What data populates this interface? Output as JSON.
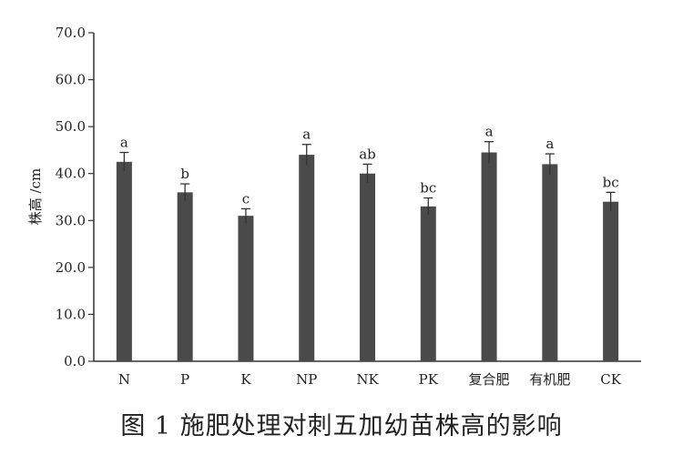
{
  "caption": "图 1 施肥处理对刺五加幼苗株高的影响",
  "colors": {
    "bar": "#4a4a4a",
    "axis": "#333333",
    "text": "#222222"
  },
  "chart_data": {
    "type": "bar",
    "title": "",
    "xlabel": "",
    "ylabel": "株高 /cm",
    "ylim": [
      0,
      70
    ],
    "yticks": [
      "0.0",
      "10.0",
      "20.0",
      "30.0",
      "40.0",
      "50.0",
      "60.0",
      "70.0"
    ],
    "grid": false,
    "error_bars": true,
    "categories": [
      "N",
      "P",
      "K",
      "NP",
      "NK",
      "PK",
      "复合肥",
      "有机肥",
      "CK"
    ],
    "values": [
      42.5,
      36.0,
      31.0,
      44.0,
      40.0,
      33.0,
      44.5,
      42.0,
      34.0
    ],
    "errors": [
      2.0,
      1.8,
      1.5,
      2.2,
      2.0,
      1.8,
      2.3,
      2.2,
      2.0
    ],
    "significance": [
      "a",
      "b",
      "c",
      "a",
      "ab",
      "bc",
      "a",
      "a",
      "bc"
    ]
  }
}
